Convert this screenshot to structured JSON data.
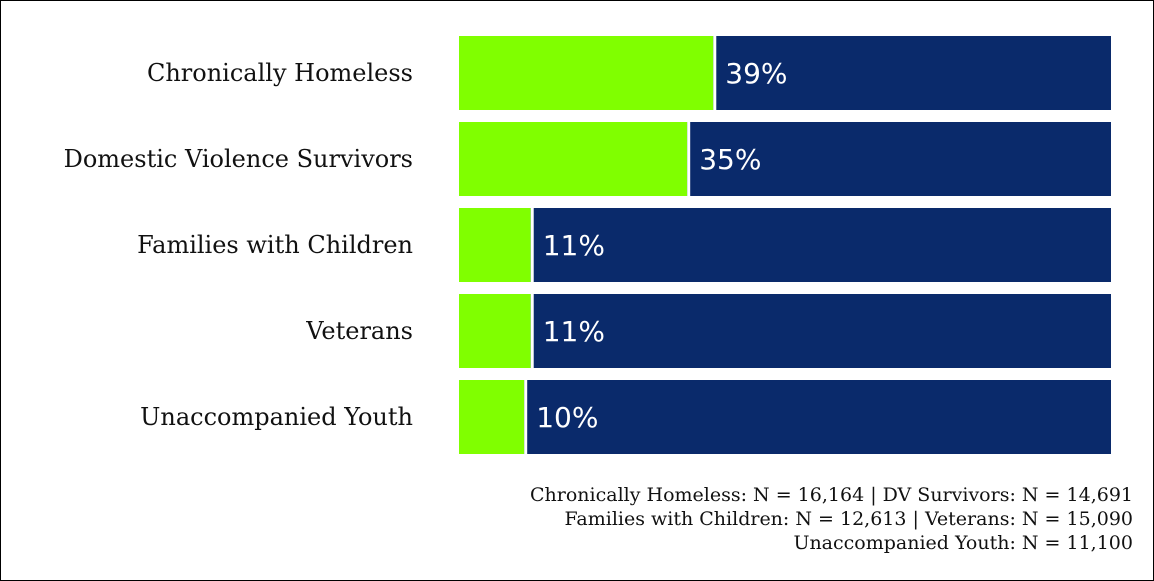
{
  "chart_data": {
    "type": "bar",
    "orientation": "horizontal",
    "stacked": true,
    "categories": [
      "Chronically Homeless",
      "Domestic Violence Survivors",
      "Families with Children",
      "Veterans",
      "Unaccompanied Youth"
    ],
    "values": [
      39,
      35,
      11,
      11,
      10
    ],
    "value_labels": [
      "39%",
      "35%",
      "11%",
      "11%",
      "10%"
    ],
    "xlim": [
      0,
      100
    ],
    "grid": false,
    "legend": "none",
    "title": "",
    "xlabel": "",
    "ylabel": ""
  },
  "colors": {
    "highlight": "#80ff00",
    "remainder": "#0a2a6b",
    "text": "#111111",
    "label_on_bar": "#ffffff"
  },
  "notes": [
    "Chronically Homeless: N = 16,164  |  DV Survivors: N = 14,691",
    "Families with Children: N = 12,613  |  Veterans: N = 15,090",
    "Unaccompanied Youth: N = 11,100"
  ]
}
